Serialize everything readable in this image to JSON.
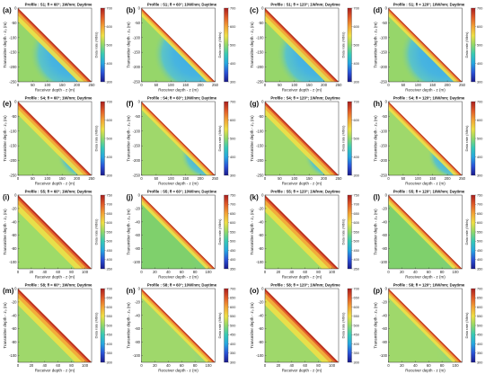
{
  "colormap": [
    "#1a1a8c",
    "#2a52d6",
    "#26a6e0",
    "#36c9b5",
    "#8fd86a",
    "#eddf45",
    "#f2a336",
    "#e05a28",
    "#a81e1e"
  ],
  "chart_data": [
    {
      "letter": "(a)",
      "type": "heatmap",
      "title": "Profile : S1; θ = 60°; 1W/nm; Daytime",
      "xlabel": "Receiver depth - z (m)",
      "ylabel": "Transmitter depth - z₀ (m)",
      "cblabel": "Data rate (Mb/s)",
      "xticks": [
        "0",
        "50",
        "100",
        "150",
        "200",
        "250"
      ],
      "yticks": [
        "0",
        "-50",
        "-100",
        "-150",
        "-200",
        "-250"
      ],
      "cbticks": [
        "700",
        "600",
        "500",
        "400",
        "300"
      ],
      "clim": [
        300,
        700
      ],
      "xlim": [
        0,
        250
      ],
      "ylim": [
        -250,
        0
      ]
    },
    {
      "letter": "(b)",
      "type": "heatmap",
      "title": "Profile : S1; θ = 60°; 10W/nm; Daytime",
      "xlabel": "Receiver depth - z (m)",
      "ylabel": "Transmitter depth - z₀ (m)",
      "cblabel": "Data rate (Mb/s)",
      "xticks": [
        "0",
        "50",
        "100",
        "150",
        "200",
        "250"
      ],
      "yticks": [
        "0",
        "-50",
        "-100",
        "-150",
        "-200",
        "-250"
      ],
      "cbticks": [
        "700",
        "600",
        "500",
        "400",
        "300"
      ],
      "clim": [
        300,
        700
      ],
      "xlim": [
        0,
        250
      ],
      "ylim": [
        -250,
        0
      ]
    },
    {
      "letter": "(c)",
      "type": "heatmap",
      "title": "Profile : S1; θ = 120°; 1W/nm; Daytime",
      "xlabel": "Receiver depth - z (m)",
      "ylabel": "Transmitter depth - z₀ (m)",
      "cblabel": "Data rate (Mb/s)",
      "xticks": [
        "0",
        "50",
        "100",
        "150",
        "200",
        "250"
      ],
      "yticks": [
        "0",
        "-50",
        "-100",
        "-150",
        "-200",
        "-250"
      ],
      "cbticks": [
        "700",
        "600",
        "500",
        "400",
        "300"
      ],
      "clim": [
        300,
        700
      ],
      "xlim": [
        0,
        250
      ],
      "ylim": [
        -250,
        0
      ]
    },
    {
      "letter": "(d)",
      "type": "heatmap",
      "title": "Profile : S1; θ = 120°; 10W/nm; Daytime",
      "xlabel": "Receiver depth - z (m)",
      "ylabel": "Transmitter depth - z₀ (m)",
      "cblabel": "Data rate (Mb/s)",
      "xticks": [
        "0",
        "50",
        "100",
        "150",
        "200",
        "250"
      ],
      "yticks": [
        "0",
        "-50",
        "-100",
        "-150",
        "-200",
        "-250"
      ],
      "cbticks": [
        "700",
        "600",
        "500",
        "400",
        "300"
      ],
      "clim": [
        300,
        700
      ],
      "xlim": [
        0,
        250
      ],
      "ylim": [
        -250,
        0
      ]
    },
    {
      "letter": "(e)",
      "type": "heatmap",
      "title": "Profile : S4; θ = 60°; 1W/nm; Daytime",
      "xlabel": "Receiver depth - z (m)",
      "ylabel": "Transmitter depth - z₀ (m)",
      "cblabel": "Data rate (Mb/s)",
      "xticks": [
        "0",
        "50",
        "100",
        "150",
        "200",
        "250"
      ],
      "yticks": [
        "0",
        "-50",
        "-100",
        "-150",
        "-200",
        "-250"
      ],
      "cbticks": [
        "700",
        "600",
        "500",
        "400",
        "300"
      ],
      "clim": [
        300,
        700
      ],
      "xlim": [
        0,
        250
      ],
      "ylim": [
        -250,
        0
      ]
    },
    {
      "letter": "(f)",
      "type": "heatmap",
      "title": "Profile : S4; θ = 60°; 10W/nm; Daytime",
      "xlabel": "Receiver depth - z (m)",
      "ylabel": "Transmitter depth - z₀ (m)",
      "cblabel": "Data rate (Mb/s)",
      "xticks": [
        "0",
        "50",
        "100",
        "150",
        "200",
        "250"
      ],
      "yticks": [
        "0",
        "-50",
        "-100",
        "-150",
        "-200",
        "-250"
      ],
      "cbticks": [
        "700",
        "600",
        "500",
        "400",
        "300"
      ],
      "clim": [
        300,
        700
      ],
      "xlim": [
        0,
        250
      ],
      "ylim": [
        -250,
        0
      ]
    },
    {
      "letter": "(g)",
      "type": "heatmap",
      "title": "Profile : S4; θ = 120°; 1W/nm; Daytime",
      "xlabel": "Receiver depth - z (m)",
      "ylabel": "Transmitter depth - z₀ (m)",
      "cblabel": "Data rate (Mb/s)",
      "xticks": [
        "0",
        "50",
        "100",
        "150",
        "200",
        "250"
      ],
      "yticks": [
        "0",
        "-50",
        "-100",
        "-150",
        "-200",
        "-250"
      ],
      "cbticks": [
        "700",
        "600",
        "500",
        "400",
        "300"
      ],
      "clim": [
        300,
        700
      ],
      "xlim": [
        0,
        250
      ],
      "ylim": [
        -250,
        0
      ]
    },
    {
      "letter": "(h)",
      "type": "heatmap",
      "title": "Profile : S4; θ = 120°; 10W/nm; Daytime",
      "xlabel": "Receiver depth - z (m)",
      "ylabel": "Transmitter depth - z₀ (m)",
      "cblabel": "Data rate (Mb/s)",
      "xticks": [
        "0",
        "50",
        "100",
        "150",
        "200",
        "250"
      ],
      "yticks": [
        "0",
        "-50",
        "-100",
        "-150",
        "-200",
        "-250"
      ],
      "cbticks": [
        "700",
        "600",
        "500",
        "400",
        "300"
      ],
      "clim": [
        300,
        700
      ],
      "xlim": [
        0,
        250
      ],
      "ylim": [
        -250,
        0
      ]
    },
    {
      "letter": "(i)",
      "type": "heatmap",
      "title": "Profile : S5; θ = 60°; 1W/nm; Daytime",
      "xlabel": "Receiver depth - z (m)",
      "ylabel": "Transmitter depth - z₀ (m)",
      "cblabel": "Data rate (Mb/s)",
      "xticks": [
        "0",
        "20",
        "40",
        "60",
        "80",
        "100"
      ],
      "yticks": [
        "0",
        "-20",
        "-40",
        "-60",
        "-80",
        "-100"
      ],
      "cbticks": [
        "750",
        "700",
        "650",
        "600",
        "550",
        "500",
        "450",
        "400",
        "350"
      ],
      "clim": [
        350,
        750
      ],
      "xlim": [
        0,
        110
      ],
      "ylim": [
        -110,
        0
      ]
    },
    {
      "letter": "(j)",
      "type": "heatmap",
      "title": "Profile : S5; θ = 60°; 10W/nm; Daytime",
      "xlabel": "Receiver depth - z (m)",
      "ylabel": "Transmitter depth - z₀ (m)",
      "cblabel": "Data rate (Mb/s)",
      "xticks": [
        "0",
        "20",
        "40",
        "60",
        "80",
        "100"
      ],
      "yticks": [
        "0",
        "-20",
        "-40",
        "-60",
        "-80",
        "-100"
      ],
      "cbticks": [
        "750",
        "700",
        "650",
        "600",
        "550",
        "500",
        "450",
        "400",
        "350"
      ],
      "clim": [
        350,
        750
      ],
      "xlim": [
        0,
        110
      ],
      "ylim": [
        -110,
        0
      ]
    },
    {
      "letter": "(k)",
      "type": "heatmap",
      "title": "Profile : S5; θ = 120°; 1W/nm; Daytime",
      "xlabel": "Receiver depth - z (m)",
      "ylabel": "Transmitter depth - z₀ (m)",
      "cblabel": "Data rate (Mb/s)",
      "xticks": [
        "0",
        "20",
        "40",
        "60",
        "80",
        "100"
      ],
      "yticks": [
        "0",
        "-20",
        "-40",
        "-60",
        "-80",
        "-100"
      ],
      "cbticks": [
        "750",
        "700",
        "650",
        "600",
        "550",
        "500",
        "450",
        "400",
        "350"
      ],
      "clim": [
        350,
        750
      ],
      "xlim": [
        0,
        110
      ],
      "ylim": [
        -110,
        0
      ]
    },
    {
      "letter": "(l)",
      "type": "heatmap",
      "title": "Profile : S5; θ = 120°; 10W/nm; Daytime",
      "xlabel": "Receiver depth - z (m)",
      "ylabel": "Transmitter depth - z₀ (m)",
      "cblabel": "Data rate (Mb/s)",
      "xticks": [
        "0",
        "20",
        "40",
        "60",
        "80",
        "100"
      ],
      "yticks": [
        "0",
        "-20",
        "-40",
        "-60",
        "-80",
        "-100"
      ],
      "cbticks": [
        "750",
        "700",
        "650",
        "600",
        "550",
        "500",
        "450",
        "400",
        "350"
      ],
      "clim": [
        350,
        750
      ],
      "xlim": [
        0,
        110
      ],
      "ylim": [
        -110,
        0
      ]
    },
    {
      "letter": "(m)",
      "type": "heatmap",
      "title": "Profile : S8; θ = 60°; 1W/nm; Daytime",
      "xlabel": "Receiver depth - z (m)",
      "ylabel": "Transmitter depth - z₀ (m)",
      "cblabel": "Data rate (Mb/s)",
      "xticks": [
        "0",
        "20",
        "40",
        "60",
        "80",
        "100"
      ],
      "yticks": [
        "0",
        "-20",
        "-40",
        "-60",
        "-80",
        "-100"
      ],
      "cbticks": [
        "700",
        "650",
        "600",
        "550",
        "500",
        "450",
        "400",
        "350",
        "300"
      ],
      "clim": [
        300,
        700
      ],
      "xlim": [
        0,
        110
      ],
      "ylim": [
        -110,
        0
      ]
    },
    {
      "letter": "(n)",
      "type": "heatmap",
      "title": "Profile : S8; θ = 60°; 10W/nm; Daytime",
      "xlabel": "Receiver depth - z (m)",
      "ylabel": "Transmitter depth - z₀ (m)",
      "cblabel": "Data rate (Mb/s)",
      "xticks": [
        "0",
        "20",
        "40",
        "60",
        "80",
        "100"
      ],
      "yticks": [
        "0",
        "-20",
        "-40",
        "-60",
        "-80",
        "-100"
      ],
      "cbticks": [
        "700",
        "650",
        "600",
        "550",
        "500",
        "450",
        "400",
        "350",
        "300"
      ],
      "clim": [
        300,
        700
      ],
      "xlim": [
        0,
        110
      ],
      "ylim": [
        -110,
        0
      ]
    },
    {
      "letter": "(o)",
      "type": "heatmap",
      "title": "Profile : S8; θ = 120°; 1W/nm; Daytime",
      "xlabel": "Receiver depth - z (m)",
      "ylabel": "Transmitter depth - z₀ (m)",
      "cblabel": "Data rate (Mb/s)",
      "xticks": [
        "0",
        "20",
        "40",
        "60",
        "80",
        "100"
      ],
      "yticks": [
        "0",
        "-20",
        "-40",
        "-60",
        "-80",
        "-100"
      ],
      "cbticks": [
        "700",
        "650",
        "600",
        "550",
        "500",
        "450",
        "400",
        "350",
        "300"
      ],
      "clim": [
        300,
        700
      ],
      "xlim": [
        0,
        110
      ],
      "ylim": [
        -110,
        0
      ]
    },
    {
      "letter": "(p)",
      "type": "heatmap",
      "title": "Profile : S8; θ = 120°; 10W/nm; Daytime",
      "xlabel": "Receiver depth - z (m)",
      "ylabel": "Transmitter depth - z₀ (m)",
      "cblabel": "Data rate (Mb/s)",
      "xticks": [
        "0",
        "20",
        "40",
        "60",
        "80",
        "100"
      ],
      "yticks": [
        "0",
        "-20",
        "-40",
        "-60",
        "-80",
        "-100"
      ],
      "cbticks": [
        "700",
        "650",
        "600",
        "550",
        "500",
        "450",
        "400",
        "350",
        "300"
      ],
      "clim": [
        300,
        700
      ],
      "xlim": [
        0,
        110
      ],
      "ylim": [
        -110,
        0
      ]
    }
  ]
}
